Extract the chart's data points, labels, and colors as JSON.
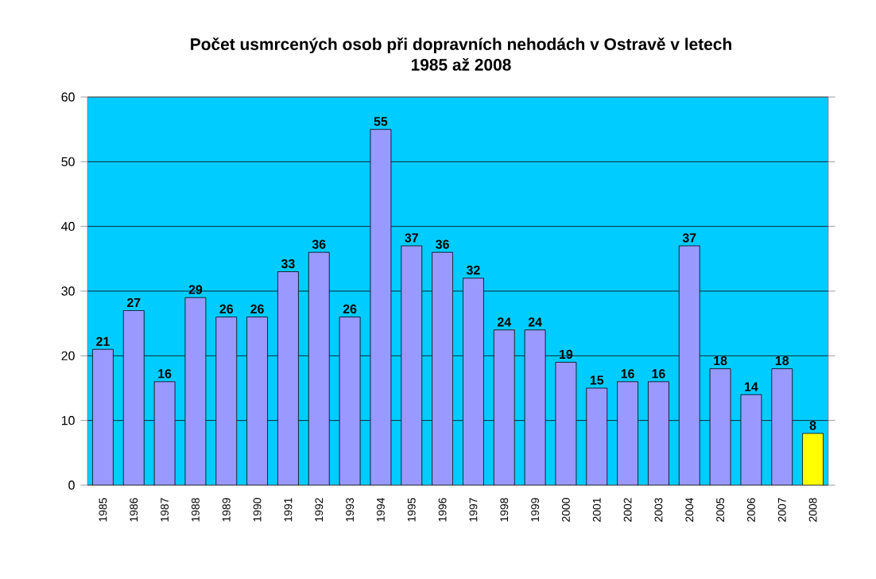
{
  "chart_data": {
    "type": "bar",
    "title": "Počet usmrcených osob při dopravních nehodách v Ostravě v letech\n1985 až 2008",
    "categories": [
      "1985",
      "1986",
      "1987",
      "1988",
      "1989",
      "1990",
      "1991",
      "1992",
      "1993",
      "1994",
      "1995",
      "1996",
      "1997",
      "1998",
      "1999",
      "2000",
      "2001",
      "2002",
      "2003",
      "2004",
      "2005",
      "2006",
      "2007",
      "2008"
    ],
    "values": [
      21,
      27,
      16,
      29,
      26,
      26,
      33,
      36,
      26,
      55,
      37,
      36,
      32,
      24,
      24,
      19,
      15,
      16,
      16,
      37,
      18,
      14,
      18,
      8
    ],
    "colors": [
      "#9999ff",
      "#9999ff",
      "#9999ff",
      "#9999ff",
      "#9999ff",
      "#9999ff",
      "#9999ff",
      "#9999ff",
      "#9999ff",
      "#9999ff",
      "#9999ff",
      "#9999ff",
      "#9999ff",
      "#9999ff",
      "#9999ff",
      "#9999ff",
      "#9999ff",
      "#9999ff",
      "#9999ff",
      "#9999ff",
      "#9999ff",
      "#9999ff",
      "#9999ff",
      "#ffff00"
    ],
    "ylim": [
      0,
      60
    ],
    "yticks": [
      0,
      10,
      20,
      30,
      40,
      50,
      60
    ],
    "grid": "y",
    "data_labels": true
  }
}
